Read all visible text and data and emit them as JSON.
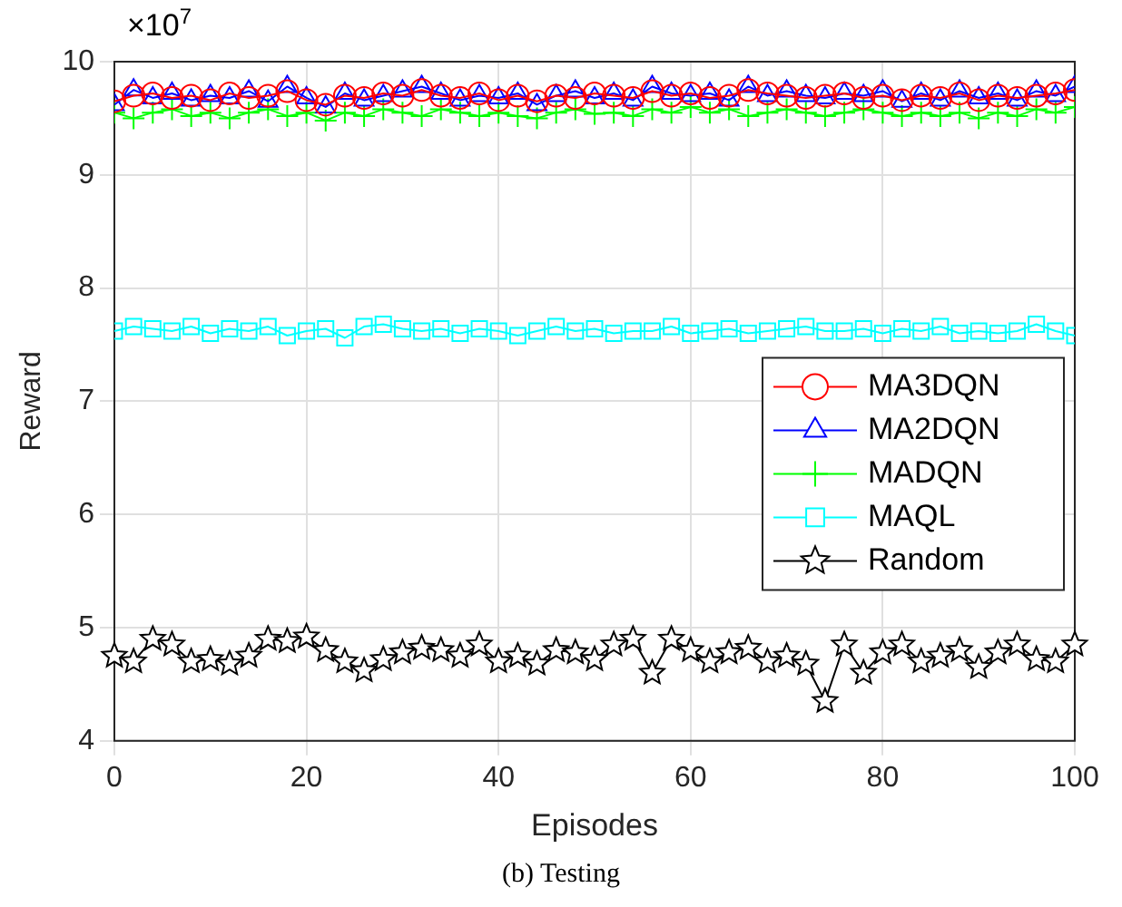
{
  "chart_data": {
    "type": "line",
    "xlabel": "Episodes",
    "ylabel": "Reward",
    "annotations": [
      "×10$^{7}$",
      "(b) Testing"
    ],
    "x": [
      0,
      2,
      4,
      6,
      8,
      10,
      12,
      14,
      16,
      18,
      20,
      22,
      24,
      26,
      28,
      30,
      32,
      34,
      36,
      38,
      40,
      42,
      44,
      46,
      48,
      50,
      52,
      54,
      56,
      58,
      60,
      62,
      64,
      66,
      68,
      70,
      72,
      74,
      76,
      78,
      80,
      82,
      84,
      86,
      88,
      90,
      92,
      94,
      96,
      98,
      100
    ],
    "xlim": [
      0,
      100
    ],
    "xticks": [
      0,
      20,
      40,
      60,
      80,
      100
    ],
    "ylim": [
      4,
      10
    ],
    "yticks": [
      4,
      5,
      6,
      7,
      8,
      9,
      10
    ],
    "grid": true,
    "legend": "right",
    "line_style": "solid",
    "series": [
      {
        "name": "MA3DQN",
        "color": "#ff0000",
        "marker": "circle",
        "values": [
          9.65,
          9.7,
          9.72,
          9.68,
          9.7,
          9.66,
          9.72,
          9.68,
          9.7,
          9.74,
          9.66,
          9.62,
          9.7,
          9.68,
          9.72,
          9.7,
          9.75,
          9.7,
          9.68,
          9.72,
          9.66,
          9.7,
          9.65,
          9.7,
          9.68,
          9.72,
          9.7,
          9.68,
          9.74,
          9.7,
          9.72,
          9.68,
          9.7,
          9.75,
          9.72,
          9.7,
          9.68,
          9.7,
          9.72,
          9.68,
          9.7,
          9.66,
          9.7,
          9.68,
          9.72,
          9.66,
          9.7,
          9.68,
          9.7,
          9.72,
          9.75
        ]
      },
      {
        "name": "MA2DQN",
        "color": "#0000ff",
        "marker": "triangle",
        "values": [
          9.62,
          9.75,
          9.68,
          9.72,
          9.66,
          9.7,
          9.68,
          9.74,
          9.65,
          9.78,
          9.68,
          9.6,
          9.72,
          9.66,
          9.7,
          9.74,
          9.78,
          9.72,
          9.66,
          9.7,
          9.68,
          9.72,
          9.62,
          9.7,
          9.74,
          9.68,
          9.72,
          9.66,
          9.78,
          9.72,
          9.7,
          9.72,
          9.66,
          9.78,
          9.7,
          9.74,
          9.7,
          9.68,
          9.72,
          9.7,
          9.74,
          9.65,
          9.72,
          9.66,
          9.74,
          9.68,
          9.72,
          9.66,
          9.74,
          9.7,
          9.78
        ]
      },
      {
        "name": "MADQN",
        "color": "#00ff00",
        "marker": "cross",
        "values": [
          9.55,
          9.5,
          9.55,
          9.58,
          9.52,
          9.55,
          9.5,
          9.55,
          9.58,
          9.52,
          9.55,
          9.48,
          9.55,
          9.52,
          9.58,
          9.55,
          9.52,
          9.58,
          9.55,
          9.52,
          9.55,
          9.52,
          9.5,
          9.55,
          9.58,
          9.54,
          9.55,
          9.52,
          9.58,
          9.55,
          9.6,
          9.55,
          9.58,
          9.52,
          9.55,
          9.58,
          9.55,
          9.52,
          9.55,
          9.58,
          9.55,
          9.52,
          9.55,
          9.52,
          9.55,
          9.5,
          9.55,
          9.52,
          9.58,
          9.55,
          9.6
        ]
      },
      {
        "name": "MAQL",
        "color": "#00ffff",
        "marker": "square",
        "values": [
          7.62,
          7.66,
          7.64,
          7.62,
          7.66,
          7.6,
          7.64,
          7.62,
          7.66,
          7.58,
          7.62,
          7.64,
          7.56,
          7.66,
          7.68,
          7.64,
          7.62,
          7.64,
          7.6,
          7.64,
          7.62,
          7.58,
          7.62,
          7.66,
          7.62,
          7.64,
          7.6,
          7.62,
          7.62,
          7.66,
          7.6,
          7.62,
          7.64,
          7.6,
          7.62,
          7.64,
          7.66,
          7.62,
          7.62,
          7.64,
          7.6,
          7.64,
          7.62,
          7.66,
          7.6,
          7.62,
          7.6,
          7.62,
          7.68,
          7.62,
          7.58
        ]
      },
      {
        "name": "Random",
        "color": "#000000",
        "marker": "star",
        "values": [
          4.75,
          4.7,
          4.9,
          4.85,
          4.7,
          4.72,
          4.68,
          4.75,
          4.9,
          4.88,
          4.92,
          4.8,
          4.7,
          4.62,
          4.72,
          4.78,
          4.82,
          4.8,
          4.75,
          4.85,
          4.7,
          4.75,
          4.68,
          4.8,
          4.78,
          4.72,
          4.85,
          4.9,
          4.6,
          4.9,
          4.8,
          4.7,
          4.78,
          4.82,
          4.7,
          4.75,
          4.68,
          4.35,
          4.85,
          4.6,
          4.78,
          4.85,
          4.7,
          4.75,
          4.8,
          4.65,
          4.78,
          4.85,
          4.72,
          4.7,
          4.85
        ]
      }
    ]
  }
}
